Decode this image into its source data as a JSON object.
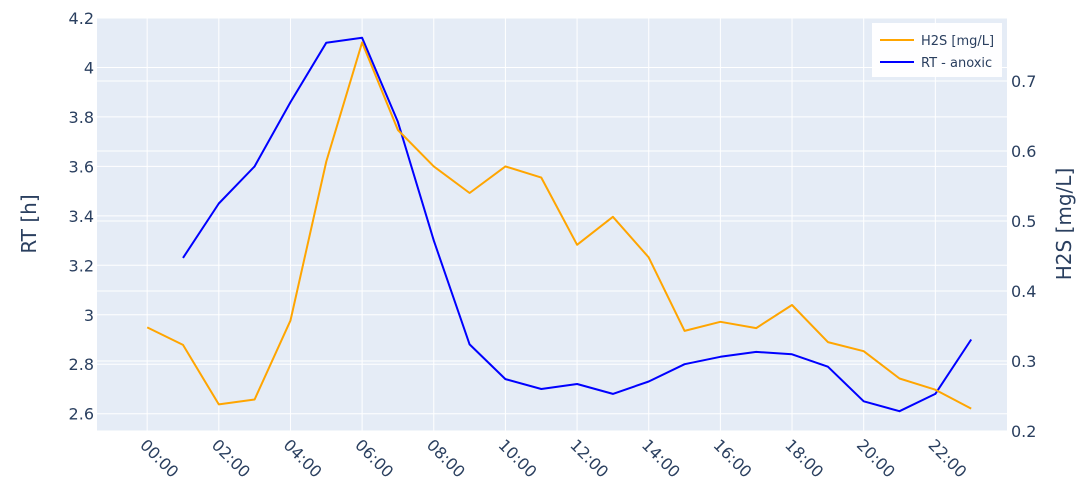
{
  "chart_data": {
    "type": "line",
    "title": "",
    "xlabel": "",
    "x_tick_labels": [
      "00:00",
      "02:00",
      "04:00",
      "06:00",
      "08:00",
      "10:00",
      "12:00",
      "14:00",
      "16:00",
      "18:00",
      "20:00",
      "22:00"
    ],
    "x_tick_hours": [
      0,
      2,
      4,
      6,
      8,
      10,
      12,
      14,
      16,
      18,
      20,
      22
    ],
    "xlim": [
      -1.4,
      24.0
    ],
    "y_left": {
      "label": "RT [h]",
      "range": [
        2.53,
        4.2
      ],
      "ticks": [
        2.6,
        2.8,
        3,
        3.2,
        3.4,
        3.6,
        3.8,
        4,
        4.2
      ],
      "tick_labels": [
        "2.6",
        "2.8",
        "3",
        "3.2",
        "3.4",
        "3.6",
        "3.8",
        "4",
        "4.2"
      ]
    },
    "y_right": {
      "label": "H2S [mg/L]",
      "range": [
        0.2,
        0.79
      ],
      "ticks": [
        0.2,
        0.3,
        0.4,
        0.5,
        0.6,
        0.7
      ],
      "tick_labels": [
        "0.2",
        "0.3",
        "0.4",
        "0.5",
        "0.6",
        "0.7"
      ]
    },
    "series": [
      {
        "name": "H2S [mg/L]",
        "axis": "right",
        "color": "#FFA500",
        "x": [
          0,
          1,
          2,
          3,
          4,
          5,
          6,
          7,
          8,
          9,
          10,
          11,
          12,
          13,
          14,
          15,
          16,
          17,
          18,
          19,
          20,
          21,
          22,
          23
        ],
        "y": [
          0.348,
          0.323,
          0.238,
          0.245,
          0.358,
          0.585,
          0.755,
          0.63,
          0.578,
          0.54,
          0.578,
          0.562,
          0.466,
          0.506,
          0.448,
          0.343,
          0.356,
          0.347,
          0.38,
          0.327,
          0.314,
          0.275,
          0.259,
          0.232
        ]
      },
      {
        "name": "RT - anoxic",
        "axis": "left",
        "color": "#0000FF",
        "x": [
          1,
          2,
          3,
          4,
          5,
          6,
          7,
          8,
          9,
          10,
          11,
          12,
          13,
          14,
          15,
          16,
          17,
          18,
          19,
          20,
          21,
          22,
          23
        ],
        "y": [
          3.23,
          3.45,
          3.6,
          3.86,
          4.1,
          4.12,
          3.78,
          3.3,
          2.88,
          2.74,
          2.7,
          2.72,
          2.68,
          2.73,
          2.8,
          2.83,
          2.85,
          2.84,
          2.79,
          2.65,
          2.61,
          2.68,
          2.9
        ]
      }
    ],
    "legend": {
      "position": "top-right",
      "entries": [
        "H2S [mg/L]",
        "RT - anoxic"
      ]
    },
    "grid": true
  }
}
